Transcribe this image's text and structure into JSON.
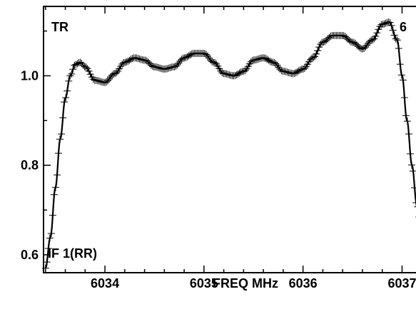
{
  "chart_data": {
    "type": "line",
    "title": "",
    "xlabel": "FREQ MHz",
    "ylabel": "",
    "xlim": [
      6033.38,
      6037.22
    ],
    "ylim": [
      0.56,
      1.155
    ],
    "xticks": [
      6034,
      6035,
      6036,
      6037
    ],
    "xtick_labels": [
      "6034",
      "6035",
      "6036",
      "6037"
    ],
    "yticks": [
      0.6,
      0.8,
      1.0
    ],
    "ytick_labels": [
      "0.6",
      "0.8",
      "1.0"
    ],
    "annotations": {
      "top_left": "TR",
      "top_right": "6",
      "bottom_left": "IF 1(RR)"
    },
    "grid": false,
    "legend": "none",
    "colors": {
      "line": "#000000",
      "markers": "#000000",
      "axes": "#000000"
    },
    "series": [
      {
        "style": "line-with-cross-markers",
        "x": [
          6033.4,
          6033.45,
          6033.5,
          6033.55,
          6033.6,
          6033.65,
          6033.7,
          6033.75,
          6033.8,
          6033.9,
          6034.0,
          6034.1,
          6034.2,
          6034.3,
          6034.4,
          6034.5,
          6034.6,
          6034.7,
          6034.8,
          6034.9,
          6035.0,
          6035.1,
          6035.2,
          6035.3,
          6035.4,
          6035.5,
          6035.6,
          6035.7,
          6035.8,
          6035.9,
          6036.0,
          6036.1,
          6036.2,
          6036.3,
          6036.4,
          6036.5,
          6036.6,
          6036.7,
          6036.8,
          6036.87,
          6036.95,
          6037.0,
          6037.05,
          6037.1,
          6037.15,
          6037.2
        ],
        "y": [
          0.57,
          0.64,
          0.75,
          0.86,
          0.95,
          1.0,
          1.025,
          1.03,
          1.02,
          0.99,
          0.985,
          1.005,
          1.03,
          1.04,
          1.035,
          1.02,
          1.015,
          1.02,
          1.04,
          1.05,
          1.05,
          1.03,
          1.005,
          1.0,
          1.01,
          1.035,
          1.04,
          1.03,
          1.01,
          1.005,
          1.015,
          1.04,
          1.075,
          1.09,
          1.09,
          1.075,
          1.06,
          1.08,
          1.115,
          1.12,
          1.08,
          1.0,
          0.9,
          0.8,
          0.71,
          0.64
        ]
      }
    ]
  }
}
